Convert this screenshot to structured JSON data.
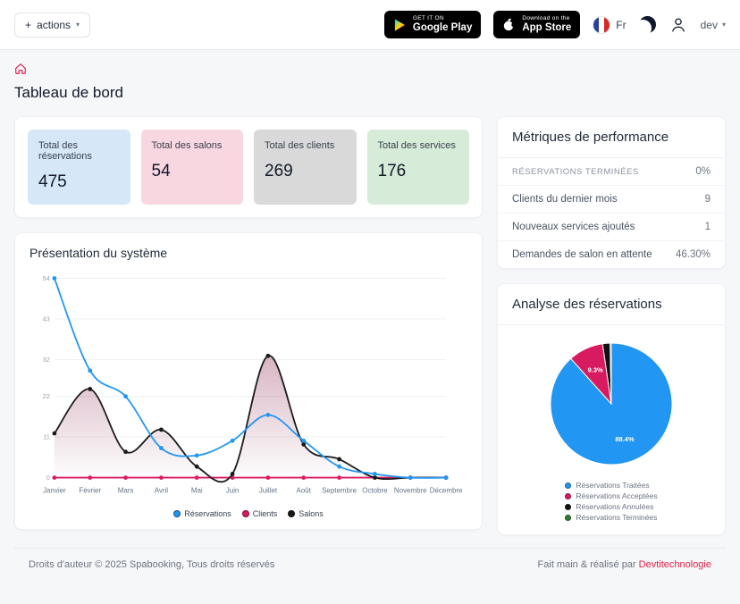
{
  "header": {
    "actions_label": "actions",
    "google_play": {
      "top": "GET IT ON",
      "bottom": "Google Play"
    },
    "app_store": {
      "top": "Download on the",
      "bottom": "App Store"
    },
    "lang": "Fr",
    "user": "dev"
  },
  "page": {
    "title": "Tableau de bord"
  },
  "stats": [
    {
      "label": "Total des réservations",
      "value": "475",
      "bg": "#d6e7f8"
    },
    {
      "label": "Total des salons",
      "value": "54",
      "bg": "#f8d7e1"
    },
    {
      "label": "Total des clients",
      "value": "269",
      "bg": "#d9d9d9"
    },
    {
      "label": "Total des services",
      "value": "176",
      "bg": "#d7ebd9"
    }
  ],
  "metrics": {
    "title": "Métriques de performance",
    "rows": [
      {
        "label": "RÉSERVATIONS TERMINÉES",
        "value": "0%"
      },
      {
        "label": "Clients du dernier mois",
        "value": "9"
      },
      {
        "label": "Nouveaux services ajoutés",
        "value": "1"
      },
      {
        "label": "Demandes de salon en attente",
        "value": "46.30%"
      }
    ]
  },
  "chart_data": [
    {
      "type": "line",
      "title": "Présentation du système",
      "x": [
        "Janvier",
        "Février",
        "Mars",
        "Avril",
        "Mai",
        "Juin",
        "Juillet",
        "Août",
        "Septembre",
        "Octobre",
        "Novembre",
        "Décembre"
      ],
      "yticks": [
        0,
        11,
        22,
        32,
        43,
        54
      ],
      "ylim": [
        0,
        54
      ],
      "grid": true,
      "legend_position": "bottom",
      "series": [
        {
          "name": "Réservations",
          "color": "#2196f3",
          "values": [
            54,
            29,
            22,
            8,
            6,
            10,
            17,
            10,
            3,
            1,
            0,
            0
          ]
        },
        {
          "name": "Clients",
          "color": "#d81b60",
          "values": [
            0,
            0,
            0,
            0,
            0,
            0,
            0,
            0,
            0,
            0,
            0,
            0
          ]
        },
        {
          "name": "Salons",
          "color": "#1a1a1a",
          "fill": "rgba(131,24,67,0.32)",
          "values": [
            12,
            24,
            7,
            13,
            3,
            1,
            33,
            9,
            5,
            0,
            0,
            0
          ]
        }
      ]
    },
    {
      "type": "pie",
      "title": "Analyse des réservations",
      "slices": [
        {
          "label": "Réservations Traitées",
          "value": 88.4,
          "color": "#2196f3",
          "label_pct": "88.4%"
        },
        {
          "label": "Réservations Acceptées",
          "value": 9.3,
          "color": "#d81b60",
          "label_pct": "9.3%"
        },
        {
          "label": "Réservations Annulées",
          "value": 2.0,
          "color": "#111111"
        },
        {
          "label": "Réservations Terminées",
          "value": 0.3,
          "color": "#2e7d32"
        }
      ]
    }
  ],
  "footer": {
    "left": "Droits d'auteur © 2025 Spabooking, Tous droits réservés",
    "right_prefix": "Fait main & réalisé par ",
    "right_link": "Devtitechnologie"
  },
  "colors": {
    "accent": "#e11d48",
    "blue": "#2196f3",
    "pink": "#d81b60",
    "dark": "#111111",
    "green": "#2e7d32"
  }
}
